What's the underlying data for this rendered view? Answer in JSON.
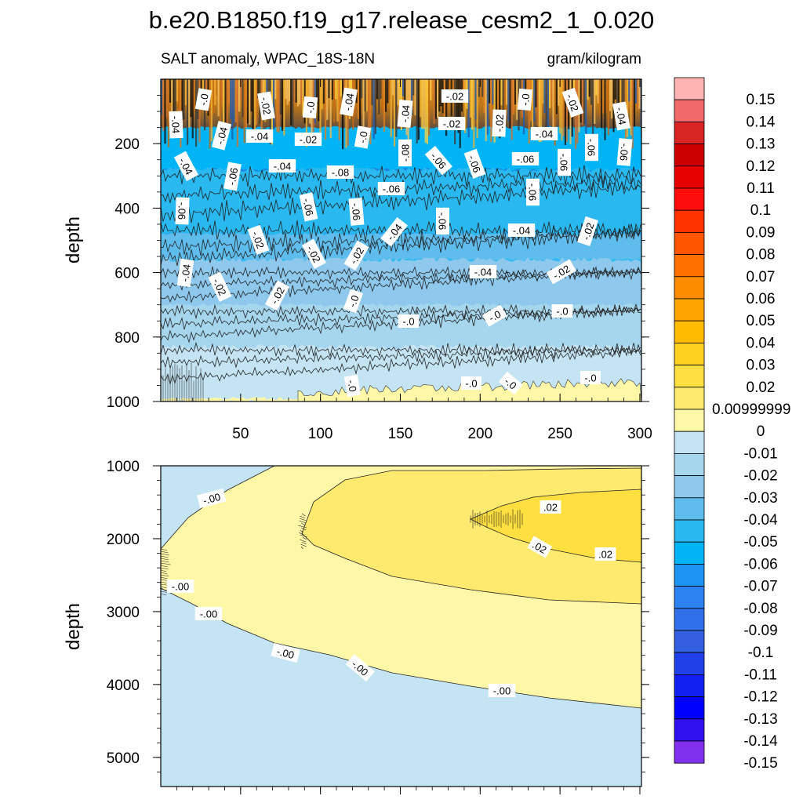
{
  "chart_data": {
    "type": "heatmap",
    "title": "b.e20.B1850.f19_g17.release_cesm2_1_0.020",
    "subtitle_left": "SALT anomaly, WPAC_18S-18N",
    "subtitle_right": "gram/kilogram",
    "x_ticks": [
      "50",
      "100",
      "150",
      "200",
      "250",
      "300"
    ],
    "xlim": [
      0,
      301
    ],
    "panels": [
      {
        "ylabel": "depth",
        "ylim": [
          0,
          1000
        ],
        "y_ticks": [
          "200",
          "400",
          "600",
          "800",
          "1000"
        ],
        "bands": [
          {
            "from": 0,
            "to": 150,
            "value": "mixed -0.1 to 0.15"
          },
          {
            "from": 150,
            "to": 280,
            "value": -0.06
          },
          {
            "from": 280,
            "to": 480,
            "value": -0.05
          },
          {
            "from": 480,
            "to": 560,
            "value": -0.04
          },
          {
            "from": 560,
            "to": 700,
            "value": -0.03
          },
          {
            "from": 700,
            "to": 830,
            "value": -0.02
          },
          {
            "from": 830,
            "to": 990,
            "value": -0.01
          },
          {
            "from": 990,
            "to": 1000,
            "value": 0
          }
        ],
        "contour_labels": [
          "-.0",
          "-.02",
          "-.0",
          "-.04",
          "-.04",
          "-.02",
          "-.0",
          "-.02",
          "-.04",
          "-.04",
          "-.02",
          "-.02",
          "-.0",
          "-.04",
          "-.04",
          "-.02",
          "-.04",
          "-.08",
          "-.06",
          "-.06",
          "-.06",
          "-.06",
          "-.06",
          "-.06",
          "-.04",
          "-.04",
          "-.06",
          "-.08",
          "-.06",
          "-.06",
          "-.06",
          "-.06",
          "-.06",
          "-.06",
          "-.04",
          "-.04",
          "-.02",
          "-.02",
          "-.02",
          "-.02",
          "-.04",
          "-.04",
          "-.02",
          "-.02",
          "-.02",
          "-.0",
          "-.0",
          "-.0",
          "-.0"
        ]
      },
      {
        "ylabel": "depth",
        "ylim": [
          1000,
          5400
        ],
        "y_ticks": [
          "1000",
          "2000",
          "3000",
          "4000",
          "5000"
        ],
        "regions": [
          {
            "value": -0.01,
            "where": "outer (shallow 1000 m near x=0 and below 3700-4300 m)"
          },
          {
            "value": 0.0,
            "where": "wedge from x~0 at 2400 m widening to 1000-4300 m at x=301"
          },
          {
            "value": 0.01,
            "where": "core 1000-2900 m for x>95"
          },
          {
            "value": 0.02,
            "where": "core 1400-2300 m for x>230"
          }
        ],
        "contour_labels": [
          "-.00",
          "-.00",
          "-.00",
          "-.00",
          "-.00",
          "-.00",
          ".02",
          ".02",
          ".02"
        ]
      }
    ],
    "colorbar": {
      "labels": [
        "0.15",
        "0.14",
        "0.13",
        "0.12",
        "0.11",
        "0.1",
        "0.09",
        "0.08",
        "0.07",
        "0.06",
        "0.05",
        "0.04",
        "0.03",
        "0.02",
        "0.00999999",
        "0",
        "-0.01",
        "-0.02",
        "-0.03",
        "-0.04",
        "-0.05",
        "-0.06",
        "-0.07",
        "-0.08",
        "-0.09",
        "-0.1",
        "-0.11",
        "-0.12",
        "-0.13",
        "-0.14",
        "-0.15"
      ],
      "colors": [
        "#ffb3b3",
        "#f06a6a",
        "#d92424",
        "#cc0000",
        "#e60000",
        "#ff0d0d",
        "#ff3300",
        "#ff5500",
        "#ff7000",
        "#ff8c00",
        "#ffa500",
        "#ffbb00",
        "#ffd020",
        "#ffe040",
        "#ffea70",
        "#fff7a8",
        "#c4e4f4",
        "#a6d6ee",
        "#8ec8ec",
        "#5fbdee",
        "#2ab8f0",
        "#00b4f5",
        "#1a96f0",
        "#2b82f0",
        "#3070e8",
        "#3360e0",
        "#2040e8",
        "#1020f0",
        "#0000ff",
        "#3010ee",
        "#8030ee"
      ]
    }
  }
}
